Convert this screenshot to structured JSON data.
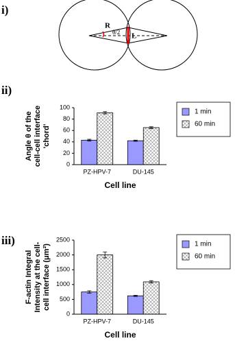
{
  "diagram": {
    "panel_label": "i)",
    "labels": [
      "R",
      "θ/2",
      "L"
    ]
  },
  "chart_data": [
    {
      "type": "bar",
      "panel_label": "ii)",
      "ylabel": [
        "Angle θ of the",
        "cell-cell interface",
        "'chord'"
      ],
      "xlabel": "Cell line",
      "categories": [
        "PZ-HPV-7",
        "DU-145"
      ],
      "series": [
        {
          "name": "1 min",
          "color": "#9999ff",
          "hatch": false,
          "values": [
            43,
            42
          ],
          "errors": [
            1.5,
            1
          ]
        },
        {
          "name": "60 min",
          "color": "#ffffff",
          "hatch": true,
          "values": [
            91,
            65
          ],
          "errors": [
            2,
            1.5
          ]
        }
      ],
      "ylim": [
        0,
        100
      ],
      "yticks": [
        0,
        20,
        40,
        60,
        80,
        100
      ],
      "legend": "right"
    },
    {
      "type": "bar",
      "panel_label": "iii)",
      "ylabel": [
        "F-actin Integral",
        "Intensity at the cell-",
        "cell interface (μm²)"
      ],
      "xlabel": "Cell line",
      "categories": [
        "PZ-HPV-7",
        "DU-145"
      ],
      "series": [
        {
          "name": "1 min",
          "color": "#9999ff",
          "hatch": false,
          "values": [
            750,
            620
          ],
          "errors": [
            40,
            20
          ]
        },
        {
          "name": "60 min",
          "color": "#ffffff",
          "hatch": true,
          "values": [
            2000,
            1090
          ],
          "errors": [
            100,
            40
          ]
        }
      ],
      "ylim": [
        0,
        2500
      ],
      "yticks": [
        0,
        500,
        1000,
        1500,
        2000,
        2500
      ],
      "legend": "right"
    }
  ]
}
